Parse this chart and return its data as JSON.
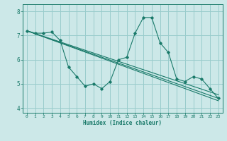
{
  "xlabel": "Humidex (Indice chaleur)",
  "xlim": [
    -0.5,
    23.5
  ],
  "ylim": [
    3.8,
    8.3
  ],
  "yticks": [
    4,
    5,
    6,
    7,
    8
  ],
  "xticks": [
    0,
    1,
    2,
    3,
    4,
    5,
    6,
    7,
    8,
    9,
    10,
    11,
    12,
    13,
    14,
    15,
    16,
    17,
    18,
    19,
    20,
    21,
    22,
    23
  ],
  "background_color": "#cce8e8",
  "grid_color": "#99cccc",
  "line_color": "#1a7a6a",
  "main_line": {
    "x": [
      0,
      1,
      2,
      3,
      4,
      5,
      6,
      7,
      8,
      9,
      10,
      11,
      12,
      13,
      14,
      15,
      16,
      17,
      18,
      19,
      20,
      21,
      22,
      23
    ],
    "y": [
      7.2,
      7.1,
      7.1,
      7.15,
      6.8,
      5.7,
      5.3,
      4.9,
      5.0,
      4.8,
      5.1,
      6.0,
      6.1,
      7.1,
      7.75,
      7.75,
      6.7,
      6.3,
      5.2,
      5.1,
      5.3,
      5.2,
      4.8,
      4.4
    ]
  },
  "trend_lines": [
    {
      "x": [
        0,
        23
      ],
      "y": [
        7.2,
        4.4
      ]
    },
    {
      "x": [
        0,
        23
      ],
      "y": [
        7.2,
        4.55
      ]
    },
    {
      "x": [
        0,
        23
      ],
      "y": [
        7.2,
        4.3
      ]
    }
  ]
}
